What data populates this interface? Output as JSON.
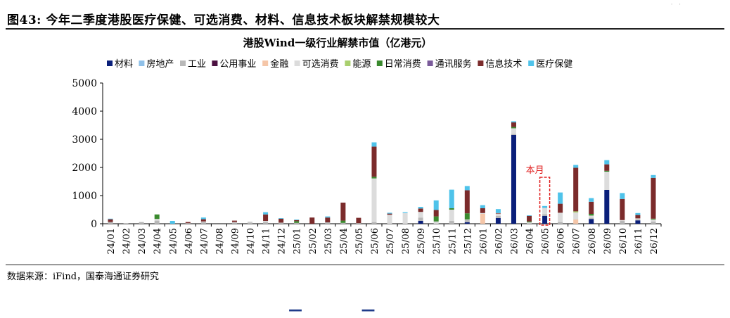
{
  "figure_title": "图43: 今年二季度港股医疗保健、可选消费、材料、信息技术板块解禁规模较大",
  "source_note": "数据来源：iFind，国泰海通证券研究",
  "colors": {
    "材料": "#0a1f7a",
    "房地产": "#8fc0e8",
    "工业": "#b8b8b8",
    "公用事业": "#4b1040",
    "金融": "#f5c6a8",
    "可选消费": "#dcdcdc",
    "能源": "#a9cf6e",
    "日常消费": "#3a8a2e",
    "通讯服务": "#7a5a9a",
    "信息技术": "#7b2b2b",
    "医疗保健": "#4fc3ea"
  },
  "chart_data": {
    "type": "bar",
    "stacked": true,
    "title": "港股Wind一级行业解禁市值（亿港元）",
    "xlabel": "",
    "ylabel": "",
    "ylim": [
      0,
      5000
    ],
    "yticks": [
      "0",
      "1000",
      "2000",
      "3000",
      "4000",
      "5000"
    ],
    "legend_position": "top",
    "annotation": "本月",
    "annotation_category": "26/05",
    "categories": [
      "24/01",
      "24/02",
      "24/03",
      "24/04",
      "24/05",
      "24/06",
      "24/07",
      "24/08",
      "24/09",
      "24/10",
      "24/11",
      "24/12",
      "25/01",
      "25/02",
      "25/03",
      "25/04",
      "25/05",
      "25/06",
      "25/07",
      "25/08",
      "25/09",
      "25/10",
      "25/11",
      "25/12",
      "26/01",
      "26/02",
      "26/03",
      "26/04",
      "26/05",
      "26/06",
      "26/07",
      "26/08",
      "26/09",
      "26/10",
      "26/11",
      "26/12"
    ],
    "series": [
      {
        "name": "材料",
        "values": [
          0,
          0,
          0,
          0,
          0,
          0,
          0,
          0,
          0,
          0,
          0,
          0,
          0,
          0,
          0,
          0,
          0,
          0,
          0,
          0,
          100,
          0,
          0,
          50,
          0,
          200,
          3150,
          0,
          280,
          0,
          0,
          170,
          1200,
          0,
          120,
          0
        ]
      },
      {
        "name": "房地产",
        "values": [
          0,
          0,
          0,
          0,
          0,
          0,
          0,
          0,
          0,
          0,
          0,
          0,
          0,
          0,
          0,
          0,
          0,
          0,
          0,
          0,
          0,
          0,
          0,
          0,
          0,
          0,
          0,
          0,
          0,
          0,
          0,
          0,
          0,
          0,
          0,
          0
        ]
      },
      {
        "name": "工业",
        "values": [
          60,
          20,
          60,
          110,
          0,
          20,
          50,
          0,
          40,
          40,
          60,
          40,
          30,
          0,
          50,
          30,
          20,
          60,
          0,
          0,
          120,
          0,
          100,
          80,
          0,
          80,
          40,
          20,
          60,
          60,
          0,
          40,
          0,
          100,
          40,
          80
        ]
      },
      {
        "name": "公用事业",
        "values": [
          0,
          0,
          0,
          0,
          0,
          0,
          0,
          0,
          0,
          0,
          0,
          0,
          0,
          0,
          0,
          0,
          0,
          0,
          0,
          0,
          0,
          0,
          0,
          0,
          0,
          0,
          0,
          0,
          0,
          0,
          0,
          0,
          0,
          0,
          0,
          0
        ]
      },
      {
        "name": "金融",
        "values": [
          0,
          0,
          0,
          0,
          0,
          0,
          0,
          0,
          0,
          0,
          0,
          0,
          0,
          0,
          0,
          0,
          0,
          0,
          0,
          0,
          0,
          0,
          0,
          0,
          350,
          0,
          0,
          0,
          0,
          0,
          150,
          0,
          0,
          0,
          0,
          0
        ]
      },
      {
        "name": "可选消费",
        "values": [
          0,
          0,
          0,
          60,
          0,
          0,
          30,
          0,
          20,
          40,
          40,
          0,
          0,
          0,
          0,
          0,
          0,
          1550,
          320,
          380,
          200,
          80,
          400,
          20,
          30,
          80,
          200,
          30,
          220,
          330,
          250,
          80,
          650,
          30,
          30,
          70
        ]
      },
      {
        "name": "能源",
        "values": [
          0,
          0,
          0,
          0,
          0,
          0,
          0,
          0,
          0,
          0,
          0,
          0,
          0,
          0,
          0,
          0,
          0,
          0,
          0,
          0,
          0,
          0,
          0,
          0,
          0,
          0,
          0,
          0,
          0,
          0,
          40,
          0,
          0,
          0,
          0,
          0
        ]
      },
      {
        "name": "日常消费",
        "values": [
          0,
          0,
          0,
          160,
          0,
          0,
          0,
          0,
          0,
          0,
          0,
          0,
          60,
          0,
          0,
          80,
          0,
          60,
          0,
          0,
          0,
          180,
          50,
          220,
          0,
          0,
          50,
          30,
          0,
          0,
          0,
          60,
          30,
          0,
          0,
          30
        ]
      },
      {
        "name": "通讯服务",
        "values": [
          0,
          0,
          0,
          0,
          0,
          0,
          0,
          0,
          0,
          0,
          0,
          0,
          0,
          0,
          0,
          0,
          0,
          0,
          0,
          0,
          0,
          0,
          0,
          0,
          0,
          0,
          0,
          0,
          0,
          0,
          0,
          0,
          0,
          0,
          0,
          0
        ]
      },
      {
        "name": "信息技术",
        "values": [
          100,
          0,
          0,
          0,
          0,
          40,
          80,
          0,
          50,
          0,
          230,
          140,
          40,
          220,
          170,
          640,
          190,
          1070,
          40,
          0,
          120,
          230,
          0,
          820,
          170,
          20,
          160,
          200,
          0,
          320,
          1550,
          430,
          230,
          750,
          120,
          1450
        ]
      },
      {
        "name": "医疗保健",
        "values": [
          20,
          0,
          0,
          0,
          100,
          0,
          60,
          0,
          0,
          0,
          80,
          20,
          20,
          0,
          40,
          0,
          0,
          150,
          30,
          30,
          60,
          340,
          660,
          150,
          110,
          140,
          40,
          20,
          70,
          400,
          100,
          130,
          150,
          210,
          70,
          100
        ]
      }
    ]
  }
}
